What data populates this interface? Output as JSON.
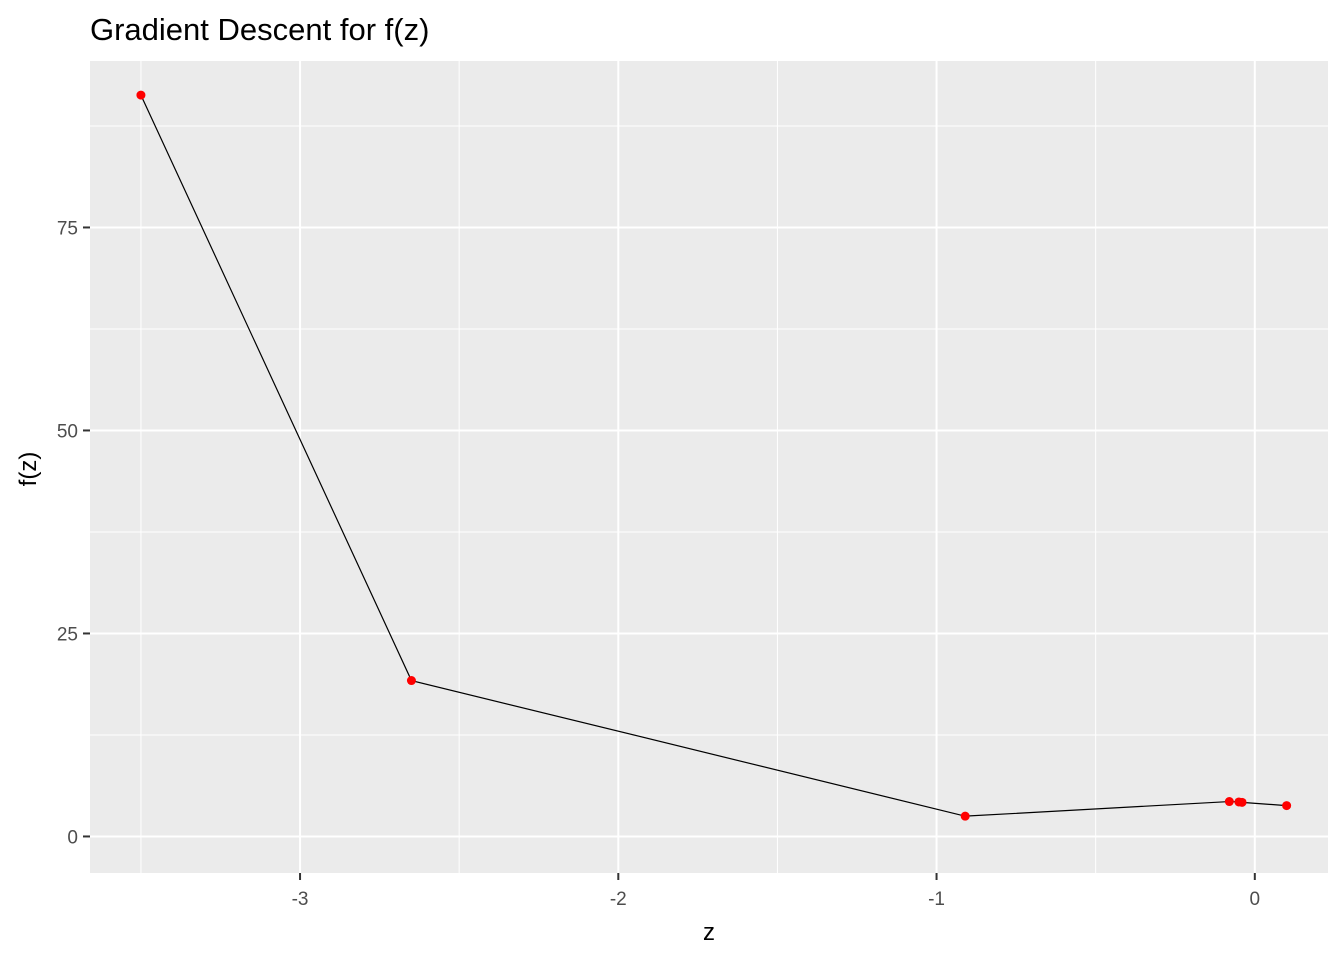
{
  "chart_data": {
    "type": "line",
    "title": "Gradient Descent for f(z)",
    "xlabel": "z",
    "ylabel": "f(z)",
    "xlim": [
      -3.66,
      0.23
    ],
    "ylim": [
      -4.5,
      95.5
    ],
    "x_ticks": [
      -3,
      -2,
      -1,
      0
    ],
    "x_tick_labels": [
      "-3",
      "-2",
      "-1",
      "0"
    ],
    "y_ticks": [
      0,
      25,
      50,
      75
    ],
    "y_tick_labels": [
      "0",
      "25",
      "50",
      "75"
    ],
    "grid": true,
    "background": "#ebebeb",
    "grid_color": "#ffffff",
    "line_color": "#000000",
    "point_color": "#ff0000",
    "series": [
      {
        "x": [
          -3.5,
          -2.65,
          -0.91,
          -0.08,
          -0.05,
          -0.04,
          0.1
        ],
        "y": [
          91.3,
          19.2,
          2.5,
          4.3,
          4.25,
          4.2,
          3.8
        ]
      }
    ]
  }
}
